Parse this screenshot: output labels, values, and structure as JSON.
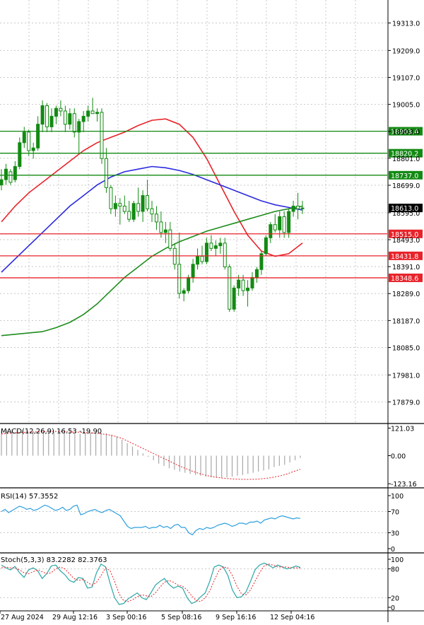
{
  "colors": {
    "background": "#ffffff",
    "grid": "#c8c8c8",
    "axis": "#000000",
    "candle": "#138a13",
    "resistance": "#138a13",
    "support": "#e8232a",
    "ma_fast": "#e8232a",
    "ma_mid": "#2a2ae0",
    "ma_slow": "#1e8c1e",
    "macd_hist": "#a8a8a8",
    "macd_signal": "#e8232a",
    "rsi": "#2e9fe0",
    "stoch_k": "#2aa6a6",
    "stoch_d": "#e8232a",
    "price_tag_bg": "#000000"
  },
  "chart_data": [
    {
      "type": "candlestick",
      "title": "",
      "ylim": [
        17800,
        19400
      ],
      "y_ticks": [
        "19313.0",
        "19209.0",
        "19107.0",
        "19005.0",
        "18903.0",
        "18801.0",
        "18699.0",
        "18595.0",
        "18493.0",
        "18391.0",
        "18289.0",
        "18187.0",
        "18085.0",
        "17981.0",
        "17879.0"
      ],
      "current_price": "18613.0",
      "horizontal_levels": [
        {
          "label": "18903.4",
          "value": 18903.4,
          "kind": "resistance"
        },
        {
          "label": "18820.2",
          "value": 18820.2,
          "kind": "resistance"
        },
        {
          "label": "18737.0",
          "value": 18737.0,
          "kind": "resistance"
        },
        {
          "label": "18515.0",
          "value": 18515.0,
          "kind": "support"
        },
        {
          "label": "18431.8",
          "value": 18431.8,
          "kind": "support"
        },
        {
          "label": "18348.6",
          "value": 18348.6,
          "kind": "support"
        }
      ],
      "candles": [
        [
          18700,
          18760,
          18680,
          18720
        ],
        [
          18720,
          18780,
          18700,
          18760
        ],
        [
          18750,
          18760,
          18700,
          18710
        ],
        [
          18720,
          18790,
          18710,
          18770
        ],
        [
          18770,
          18880,
          18760,
          18860
        ],
        [
          18860,
          18920,
          18840,
          18900
        ],
        [
          18900,
          18910,
          18810,
          18830
        ],
        [
          18830,
          18860,
          18800,
          18840
        ],
        [
          18840,
          18960,
          18830,
          18930
        ],
        [
          18930,
          19020,
          18900,
          19000
        ],
        [
          19000,
          19010,
          18900,
          18920
        ],
        [
          18920,
          18990,
          18900,
          18960
        ],
        [
          18960,
          19000,
          18930,
          18990
        ],
        [
          18990,
          19020,
          18960,
          18980
        ],
        [
          18980,
          19000,
          18900,
          18930
        ],
        [
          18930,
          18990,
          18910,
          18970
        ],
        [
          18970,
          18990,
          18880,
          18900
        ],
        [
          18900,
          18950,
          18820,
          18940
        ],
        [
          18940,
          18980,
          18900,
          18960
        ],
        [
          18960,
          19000,
          18940,
          18980
        ],
        [
          18980,
          19030,
          18970,
          18970
        ],
        [
          18970,
          18990,
          18940,
          18975
        ],
        [
          18975,
          18990,
          18780,
          18800
        ],
        [
          18800,
          18840,
          18670,
          18690
        ],
        [
          18690,
          18700,
          18590,
          18610
        ],
        [
          18610,
          18660,
          18580,
          18630
        ],
        [
          18630,
          18650,
          18550,
          18620
        ],
        [
          18620,
          18660,
          18590,
          18600
        ],
        [
          18600,
          18640,
          18560,
          18570
        ],
        [
          18570,
          18640,
          18560,
          18630
        ],
        [
          18630,
          18690,
          18580,
          18600
        ],
        [
          18600,
          18680,
          18560,
          18660
        ],
        [
          18660,
          18720,
          18600,
          18610
        ],
        [
          18610,
          18640,
          18560,
          18590
        ],
        [
          18590,
          18620,
          18530,
          18560
        ],
        [
          18560,
          18600,
          18500,
          18520
        ],
        [
          18520,
          18560,
          18480,
          18530
        ],
        [
          18530,
          18560,
          18450,
          18460
        ],
        [
          18460,
          18480,
          18380,
          18400
        ],
        [
          18400,
          18520,
          18270,
          18290
        ],
        [
          18290,
          18310,
          18260,
          18300
        ],
        [
          18300,
          18360,
          18290,
          18350
        ],
        [
          18350,
          18420,
          18330,
          18400
        ],
        [
          18400,
          18460,
          18380,
          18430
        ],
        [
          18430,
          18470,
          18400,
          18410
        ],
        [
          18410,
          18500,
          18400,
          18480
        ],
        [
          18480,
          18510,
          18450,
          18460
        ],
        [
          18460,
          18490,
          18430,
          18470
        ],
        [
          18470,
          18500,
          18440,
          18480
        ],
        [
          18480,
          18500,
          18380,
          18390
        ],
        [
          18390,
          18400,
          18220,
          18230
        ],
        [
          18230,
          18320,
          18220,
          18310
        ],
        [
          18310,
          18360,
          18280,
          18340
        ],
        [
          18340,
          18360,
          18280,
          18300
        ],
        [
          18300,
          18340,
          18240,
          18310
        ],
        [
          18310,
          18370,
          18300,
          18350
        ],
        [
          18350,
          18390,
          18330,
          18380
        ],
        [
          18380,
          18450,
          18360,
          18440
        ],
        [
          18440,
          18510,
          18430,
          18500
        ],
        [
          18500,
          18560,
          18480,
          18550
        ],
        [
          18550,
          18590,
          18520,
          18530
        ],
        [
          18530,
          18600,
          18500,
          18580
        ],
        [
          18580,
          18600,
          18500,
          18520
        ],
        [
          18520,
          18610,
          18500,
          18600
        ],
        [
          18600,
          18640,
          18580,
          18620
        ],
        [
          18620,
          18670,
          18570,
          18610
        ],
        [
          18610,
          18640,
          18590,
          18613
        ]
      ],
      "moving_averages": [
        {
          "values": [
            18560,
            18620,
            18670,
            18710,
            18750,
            18790,
            18830,
            18860,
            18880,
            18900,
            18925,
            18945,
            18950,
            18930,
            18880,
            18800,
            18700,
            18600,
            18510,
            18450,
            18430,
            18440,
            18480
          ]
        },
        {
          "values": [
            18370,
            18420,
            18470,
            18520,
            18570,
            18620,
            18660,
            18700,
            18730,
            18750,
            18760,
            18770,
            18765,
            18755,
            18740,
            18720,
            18700,
            18680,
            18660,
            18640,
            18625,
            18615,
            18605
          ]
        },
        {
          "values": [
            18130,
            18135,
            18140,
            18145,
            18160,
            18180,
            18210,
            18250,
            18300,
            18350,
            18390,
            18430,
            18460,
            18485,
            18505,
            18525,
            18540,
            18555,
            18570,
            18585,
            18600,
            18610,
            18620
          ]
        }
      ],
      "x_tick_labels": [
        "27 Aug 2024",
        "29 Aug 12:16",
        "3 Sep 00:16",
        "5 Sep 08:16",
        "9 Sep 16:16",
        "12 Sep 04:16"
      ]
    },
    {
      "type": "bar",
      "label": "MACD(12,26,9) 16.53 -19.90",
      "y_ticks": [
        "121.03",
        "0.00",
        "-123.16"
      ],
      "ylim": [
        -135,
        135
      ],
      "histogram": [
        110,
        112,
        115,
        112,
        108,
        110,
        105,
        102,
        106,
        108,
        104,
        102,
        100,
        98,
        95,
        96,
        98,
        100,
        102,
        100,
        98,
        92,
        85,
        70,
        55,
        40,
        25,
        10,
        -5,
        -20,
        -35,
        -45,
        -55,
        -62,
        -70,
        -75,
        -80,
        -85,
        -88,
        -92,
        -95,
        -97,
        -98,
        -95,
        -92,
        -88,
        -85,
        -80,
        -75,
        -70,
        -65,
        -60,
        -50,
        -45,
        -40,
        -30,
        -20,
        -10
      ],
      "signal": [
        95,
        98,
        100,
        102,
        104,
        105,
        106,
        106,
        106,
        105,
        104,
        103,
        101,
        99,
        96,
        92,
        85,
        75,
        60,
        45,
        30,
        15,
        0,
        -15,
        -30,
        -45,
        -58,
        -70,
        -80,
        -88,
        -94,
        -98,
        -101,
        -103,
        -104,
        -104,
        -103,
        -100,
        -96,
        -90,
        -82,
        -70,
        -60
      ]
    },
    {
      "type": "line",
      "label": "RSI(14) 57.3552",
      "y_ticks": [
        "100",
        "70",
        "30",
        "0"
      ],
      "ylim": [
        0,
        100
      ],
      "values": [
        70,
        74,
        68,
        72,
        76,
        80,
        78,
        74,
        76,
        72,
        74,
        78,
        82,
        80,
        76,
        72,
        74,
        78,
        72,
        74,
        80,
        82,
        64,
        66,
        70,
        72,
        74,
        70,
        68,
        72,
        74,
        70,
        66,
        62,
        52,
        42,
        38,
        40,
        40,
        40,
        42,
        38,
        40,
        40,
        44,
        40,
        42,
        38,
        44,
        46,
        40,
        40,
        30,
        26,
        34,
        38,
        36,
        40,
        38,
        40,
        44,
        46,
        48,
        46,
        42,
        44,
        48,
        48,
        46,
        50,
        50,
        52,
        48,
        54,
        56,
        58,
        56,
        60,
        62,
        60,
        58,
        56,
        58,
        57
      ]
    },
    {
      "type": "line",
      "label": "Stoch(5,3,3) 83.2282 82.3763",
      "y_ticks": [
        "100",
        "80",
        "20",
        "0"
      ],
      "ylim": [
        0,
        100
      ],
      "series_k": [
        88,
        82,
        78,
        85,
        72,
        62,
        78,
        82,
        76,
        60,
        70,
        86,
        88,
        76,
        68,
        56,
        52,
        62,
        60,
        40,
        42,
        72,
        90,
        84,
        50,
        20,
        6,
        8,
        18,
        24,
        30,
        20,
        16,
        30,
        46,
        54,
        60,
        48,
        40,
        44,
        40,
        20,
        8,
        12,
        22,
        30,
        54,
        84,
        88,
        84,
        66,
        36,
        20,
        22,
        32,
        54,
        78,
        88,
        92,
        88,
        82,
        88,
        84,
        80,
        82,
        86,
        83
      ],
      "series_d": [
        82,
        84,
        82,
        82,
        78,
        72,
        70,
        74,
        78,
        74,
        70,
        72,
        80,
        84,
        80,
        70,
        60,
        56,
        58,
        52,
        46,
        52,
        66,
        82,
        76,
        54,
        28,
        14,
        12,
        16,
        22,
        26,
        24,
        22,
        30,
        42,
        52,
        56,
        52,
        46,
        44,
        36,
        24,
        14,
        12,
        20,
        34,
        56,
        76,
        84,
        82,
        66,
        44,
        28,
        26,
        36,
        54,
        72,
        86,
        90,
        88,
        84,
        84,
        84,
        82,
        82,
        82
      ]
    }
  ]
}
